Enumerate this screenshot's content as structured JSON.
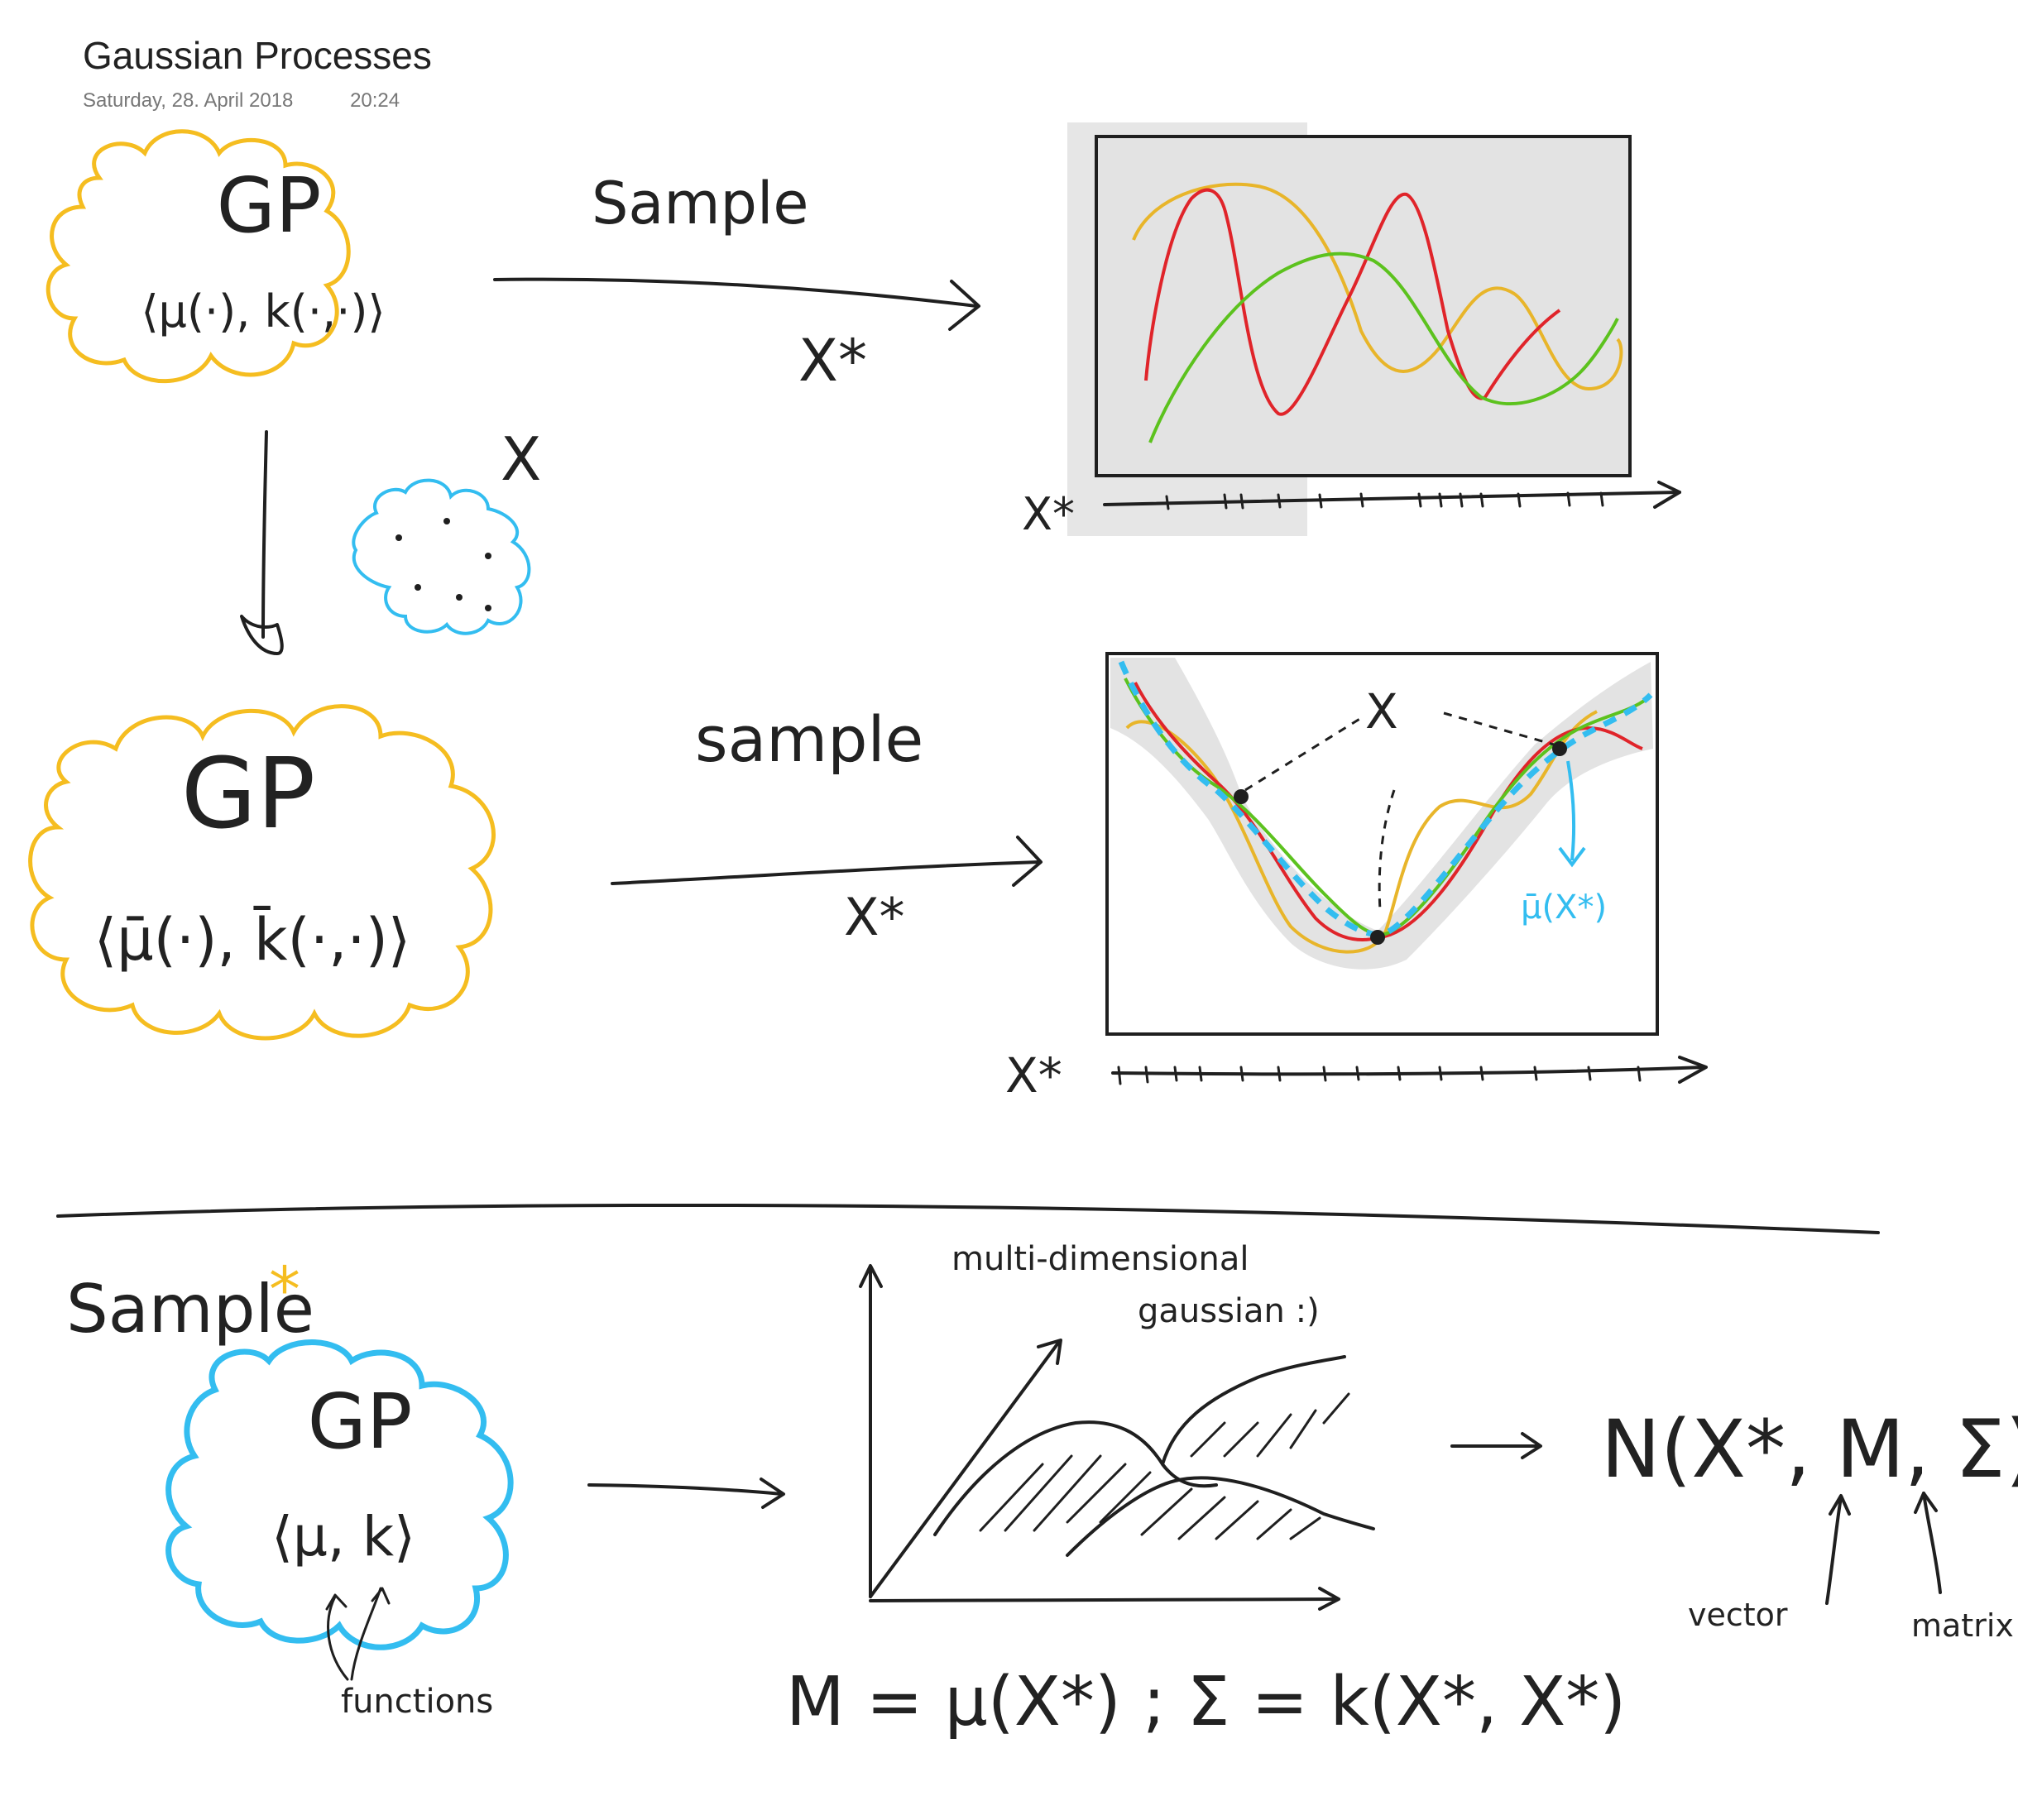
{
  "header": {
    "title": "Gaussian Processes",
    "date": "Saturday, 28. April 2018",
    "time": "20:24"
  },
  "colors": {
    "ink": "#1f1f1f",
    "prior_cloud": "#f5bd20",
    "data_cloud": "#33bdf0",
    "plot_fill": "#e3e3e3",
    "sample_red": "#e0242a",
    "sample_yellow": "#e8b52a",
    "sample_green": "#5cc21e",
    "posterior_mean": "#33bdf0"
  },
  "prior": {
    "cloud_label": "GP",
    "params": "⟨μ(·), k(·,·)⟩",
    "arrow_label": "Sample",
    "arrow_sub": "X*",
    "axis_label": "X*"
  },
  "data": {
    "label": "X"
  },
  "posterior": {
    "cloud_label": "GP",
    "params": "⟨μ̄(·), k̄(·,·)⟩",
    "arrow_label": "sample",
    "arrow_sub": "X*",
    "axis_label": "X*",
    "data_label": "X",
    "mean_label": "μ̄(X*)"
  },
  "bottom": {
    "heading": "Sample",
    "star": "*",
    "cloud_label": "GP",
    "params": "⟨μ, k⟩",
    "params_note": "functions",
    "gaussian_note_1": "multi-dimensional",
    "gaussian_note_2": "gaussian :)",
    "normal": "N(X*, M, Σ)",
    "vector_note": "vector",
    "matrix_note": "matrix",
    "formula": "M = μ(X*) ; Σ = k(X*, X*)"
  }
}
